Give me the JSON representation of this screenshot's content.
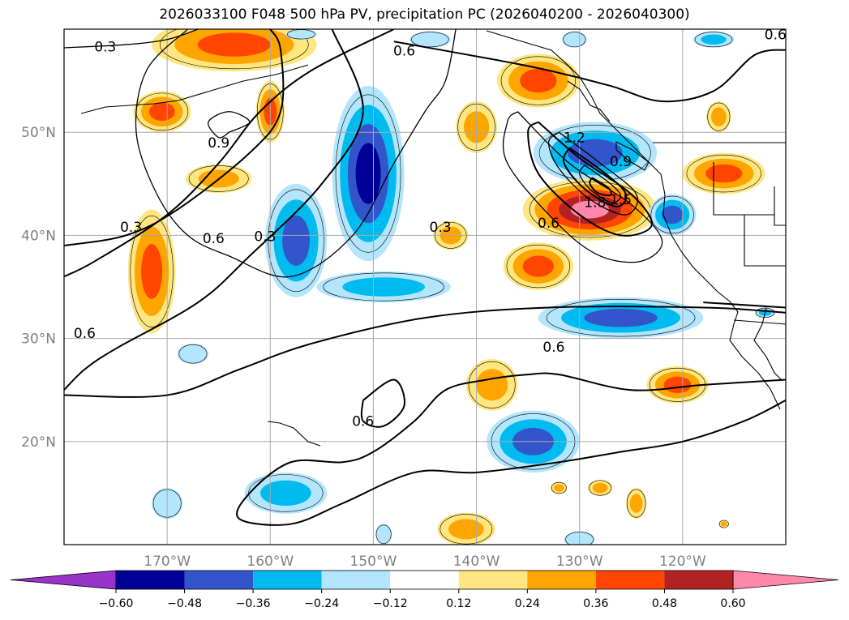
{
  "title": "2026033100 F048 500 hPa PV, precipitation PC (2026040200 - 2026040300)",
  "map": {
    "projection": "cylindrical",
    "lon_range": [
      -180,
      -110
    ],
    "lat_range": [
      10,
      60
    ],
    "grid": true,
    "coastlines": true,
    "lat_ticks": [
      {
        "lat": 50,
        "label": "50°N"
      },
      {
        "lat": 40,
        "label": "40°N"
      },
      {
        "lat": 30,
        "label": "30°N"
      },
      {
        "lat": 20,
        "label": "20°N"
      }
    ],
    "lon_ticks": [
      {
        "lon": -170,
        "label": "170°W"
      },
      {
        "lon": -160,
        "label": "160°W"
      },
      {
        "lon": -150,
        "label": "150°W"
      },
      {
        "lon": -140,
        "label": "140°W"
      },
      {
        "lon": -130,
        "label": "130°W"
      },
      {
        "lon": -120,
        "label": "120°W"
      }
    ],
    "contour_labels": [
      {
        "text": "0.3",
        "lon": -176,
        "lat": 58.3
      },
      {
        "text": "0.6",
        "lon": -147,
        "lat": 57.9
      },
      {
        "text": "0.6",
        "lon": -111,
        "lat": 59.5
      },
      {
        "text": "0.9",
        "lon": -165,
        "lat": 49.0
      },
      {
        "text": "1.2",
        "lon": -130.5,
        "lat": 49.5
      },
      {
        "text": "0.9",
        "lon": -126,
        "lat": 47.2
      },
      {
        "text": "1.8",
        "lon": -128.5,
        "lat": 43.2
      },
      {
        "text": "1.5",
        "lon": -126,
        "lat": 43.5
      },
      {
        "text": "0.6",
        "lon": -133,
        "lat": 41.2
      },
      {
        "text": "0.3",
        "lon": -173.5,
        "lat": 40.8
      },
      {
        "text": "0.6",
        "lon": -165.5,
        "lat": 39.7
      },
      {
        "text": "0.3",
        "lon": -160.5,
        "lat": 39.9
      },
      {
        "text": "0.3",
        "lon": -143.5,
        "lat": 40.8
      },
      {
        "text": "0.6",
        "lon": -178,
        "lat": 30.5
      },
      {
        "text": "0.6",
        "lon": -132.5,
        "lat": 29.2
      },
      {
        "text": "0.6",
        "lon": -151,
        "lat": 22.0
      }
    ]
  },
  "chart_data": {
    "type": "heatmap",
    "title": "2026033100 F048 500 hPa PV, precipitation PC (2026040200 - 2026040300)",
    "xlim": [
      -180,
      -110
    ],
    "ylim": [
      10,
      60
    ],
    "colorbar": {
      "extend": "both",
      "levels": [
        -0.72,
        -0.6,
        -0.48,
        -0.36,
        -0.24,
        -0.12,
        0.12,
        0.24,
        0.36,
        0.48,
        0.6,
        0.72
      ],
      "colors": [
        "#9933cc",
        "#000099",
        "#3355cc",
        "#00bbf0",
        "#b3e5fc",
        "#ffffff",
        "#ffe680",
        "#ffa500",
        "#ff4500",
        "#b22222",
        "#ff88aa"
      ],
      "tick_labels": [
        "−0.60",
        "−0.48",
        "−0.36",
        "−0.24",
        "−0.12",
        "0.12",
        "0.24",
        "0.36",
        "0.48",
        "0.60"
      ],
      "tick_values": [
        -0.6,
        -0.48,
        -0.36,
        -0.24,
        -0.12,
        0.12,
        0.24,
        0.36,
        0.48,
        0.6
      ]
    },
    "precip_pc_fields": [
      {
        "value": 0.45,
        "lon": -163.5,
        "lat": 58.5,
        "rx": 8.0,
        "ry": 2.6
      },
      {
        "value": 0.36,
        "lon": -170.5,
        "lat": 52.0,
        "rx": 2.8,
        "ry": 2.0
      },
      {
        "value": 0.36,
        "lon": -160.0,
        "lat": 52.0,
        "rx": 1.4,
        "ry": 3.0
      },
      {
        "value": 0.3,
        "lon": -165.0,
        "lat": 45.5,
        "rx": 3.2,
        "ry": 1.4
      },
      {
        "value": 0.36,
        "lon": -171.5,
        "lat": 36.5,
        "rx": 2.3,
        "ry": 6.0
      },
      {
        "value": -0.5,
        "lon": -150.5,
        "lat": 46.0,
        "rx": 3.5,
        "ry": 8.5
      },
      {
        "value": -0.42,
        "lon": -157.5,
        "lat": 39.5,
        "rx": 3.0,
        "ry": 5.5
      },
      {
        "value": -0.3,
        "lon": -149.0,
        "lat": 35.0,
        "rx": 6.5,
        "ry": 1.5
      },
      {
        "value": 0.3,
        "lon": -142.5,
        "lat": 40.0,
        "rx": 1.7,
        "ry": 1.4
      },
      {
        "value": 0.3,
        "lon": -140.0,
        "lat": 50.5,
        "rx": 2.0,
        "ry": 2.5
      },
      {
        "value": 0.4,
        "lon": -134.0,
        "lat": 55.0,
        "rx": 4.0,
        "ry": 2.6
      },
      {
        "value": -0.45,
        "lon": -128.5,
        "lat": 48.0,
        "rx": 6.0,
        "ry": 3.0
      },
      {
        "value": 0.62,
        "lon": -129.0,
        "lat": 42.5,
        "rx": 6.5,
        "ry": 3.0
      },
      {
        "value": -0.4,
        "lon": -121.0,
        "lat": 42.0,
        "rx": 2.3,
        "ry": 2.0
      },
      {
        "value": 0.36,
        "lon": -134.0,
        "lat": 37.0,
        "rx": 3.4,
        "ry": 2.3
      },
      {
        "value": -0.36,
        "lon": -126.0,
        "lat": 32.0,
        "rx": 8.0,
        "ry": 2.0
      },
      {
        "value": 0.45,
        "lon": -116.0,
        "lat": 46.0,
        "rx": 4.0,
        "ry": 2.0
      },
      {
        "value": -0.25,
        "lon": -112.0,
        "lat": 32.5,
        "rx": 1.0,
        "ry": 0.5
      },
      {
        "value": 0.36,
        "lon": -120.5,
        "lat": 25.5,
        "rx": 3.0,
        "ry": 1.8
      },
      {
        "value": 0.24,
        "lon": -138.5,
        "lat": 25.5,
        "rx": 2.5,
        "ry": 2.5
      },
      {
        "value": -0.36,
        "lon": -134.5,
        "lat": 20.0,
        "rx": 4.5,
        "ry": 3.0
      },
      {
        "value": -0.24,
        "lon": -158.5,
        "lat": 15.0,
        "rx": 4.0,
        "ry": 2.0
      },
      {
        "value": -0.2,
        "lon": -167.5,
        "lat": 28.5,
        "rx": 1.5,
        "ry": 1.0
      },
      {
        "value": -0.2,
        "lon": -170.0,
        "lat": 14.0,
        "rx": 1.5,
        "ry": 1.5
      },
      {
        "value": 0.24,
        "lon": -141.0,
        "lat": 11.5,
        "rx": 2.8,
        "ry": 1.6
      },
      {
        "value": 0.3,
        "lon": -128.0,
        "lat": 15.5,
        "rx": 1.2,
        "ry": 0.8
      },
      {
        "value": 0.3,
        "lon": -124.5,
        "lat": 14.0,
        "rx": 1.0,
        "ry": 1.5
      },
      {
        "value": -0.2,
        "lon": -130.0,
        "lat": 10.5,
        "rx": 1.5,
        "ry": 0.8
      },
      {
        "value": -0.2,
        "lon": -149.0,
        "lat": 11.0,
        "rx": 0.8,
        "ry": 1.0
      },
      {
        "value": -0.2,
        "lon": -130.5,
        "lat": 59.0,
        "rx": 1.2,
        "ry": 0.8
      },
      {
        "value": -0.2,
        "lon": -144.5,
        "lat": 59.0,
        "rx": 2.0,
        "ry": 0.8
      },
      {
        "value": -0.25,
        "lon": -117.0,
        "lat": 59.0,
        "rx": 2.0,
        "ry": 0.8
      },
      {
        "value": -0.2,
        "lon": -157.0,
        "lat": 59.5,
        "rx": 1.5,
        "ry": 0.5
      },
      {
        "value": 0.24,
        "lon": -116.5,
        "lat": 51.5,
        "rx": 1.2,
        "ry": 1.5
      },
      {
        "value": 0.24,
        "lon": -132.0,
        "lat": 15.5,
        "rx": 0.8,
        "ry": 0.6
      },
      {
        "value": 0.3,
        "lon": -116.0,
        "lat": 12.0,
        "rx": 0.5,
        "ry": 0.4
      }
    ],
    "pv_contours": {
      "levels": [
        0.3,
        0.6,
        0.9,
        1.2,
        1.5,
        1.8
      ],
      "lines": [
        {
          "value": 0.3,
          "points": [
            [
              -180,
              58.2
            ],
            [
              -174,
              58.5
            ],
            [
              -170,
              59
            ],
            [
              -167,
              60
            ]
          ]
        },
        {
          "value": 0.3,
          "points": [
            [
              -168,
              60
            ],
            [
              -172,
              56
            ],
            [
              -173,
              50
            ],
            [
              -171,
              44
            ],
            [
              -168,
              40
            ],
            [
              -164,
              38
            ],
            [
              -158,
              36
            ],
            [
              -152,
              40
            ],
            [
              -148,
              47
            ],
            [
              -145,
              52
            ],
            [
              -143,
              55
            ],
            [
              -142,
              60
            ]
          ]
        },
        {
          "value": 0.6,
          "points": [
            [
              -148,
              60
            ],
            [
              -156,
              56
            ],
            [
              -161,
              52
            ],
            [
              -165,
              47
            ],
            [
              -170,
              42
            ],
            [
              -177,
              37.5
            ],
            [
              -180,
              36
            ]
          ]
        },
        {
          "value": 0.6,
          "points": [
            [
              -154,
              60
            ],
            [
              -151,
              52
            ],
            [
              -155,
              45
            ],
            [
              -162,
              38
            ],
            [
              -167,
              33.5
            ],
            [
              -175,
              29
            ],
            [
              -178,
              27
            ],
            [
              -180,
              25
            ]
          ]
        },
        {
          "value": 0.6,
          "points": [
            [
              -148,
              58.8
            ],
            [
              -138,
              57
            ],
            [
              -133,
              56
            ],
            [
              -127,
              54.5
            ],
            [
              -122,
              53
            ],
            [
              -117,
              54
            ],
            [
              -113,
              57.5
            ],
            [
              -110,
              58
            ]
          ]
        },
        {
          "value": 0.6,
          "points": [
            [
              -180,
              39
            ],
            [
              -174,
              40
            ],
            [
              -169,
              42.5
            ],
            [
              -162,
              48
            ],
            [
              -159,
              52
            ],
            [
              -159,
              58
            ],
            [
              -160,
              60
            ]
          ]
        },
        {
          "value": 0.9,
          "points": [
            [
              -164,
              50
            ],
            [
              -162,
              51
            ],
            [
              -164,
              52
            ],
            [
              -166,
              51
            ],
            [
              -165,
              49.5
            ],
            [
              -164,
              50
            ]
          ]
        },
        {
          "value": 0.3,
          "points": [
            [
              -136,
              52
            ],
            [
              -131,
              47
            ],
            [
              -125,
              43
            ],
            [
              -122,
              39.5
            ],
            [
              -124,
              37.5
            ],
            [
              -128,
              38
            ],
            [
              -132,
              41
            ],
            [
              -137,
              47
            ],
            [
              -137,
              51
            ],
            [
              -136,
              52
            ]
          ]
        },
        {
          "value": 0.6,
          "points": [
            [
              -134,
              51
            ],
            [
              -130,
              47.5
            ],
            [
              -125,
              44
            ],
            [
              -123,
              41
            ],
            [
              -126,
              40
            ],
            [
              -130,
              42
            ],
            [
              -134,
              46
            ],
            [
              -135,
              50
            ],
            [
              -134,
              51
            ]
          ]
        },
        {
          "value": 0.9,
          "points": [
            [
              -132,
              50
            ],
            [
              -128,
              47
            ],
            [
              -124.5,
              44
            ],
            [
              -125.5,
              42
            ],
            [
              -129,
              43.5
            ],
            [
              -132,
              46.5
            ],
            [
              -133,
              49
            ],
            [
              -132,
              50
            ]
          ]
        },
        {
          "value": 1.2,
          "points": [
            [
              -131,
              48.5
            ],
            [
              -127.5,
              46
            ],
            [
              -125.5,
              44
            ],
            [
              -126.5,
              42.8
            ],
            [
              -129.5,
              44.5
            ],
            [
              -131.5,
              47
            ],
            [
              -131,
              48.5
            ]
          ]
        },
        {
          "value": 1.5,
          "points": [
            [
              -129.5,
              46.8
            ],
            [
              -127,
              45
            ],
            [
              -126,
              43.8
            ],
            [
              -127,
              43.2
            ],
            [
              -129,
              44.5
            ],
            [
              -130,
              46
            ],
            [
              -129.5,
              46.8
            ]
          ]
        },
        {
          "value": 1.8,
          "points": [
            [
              -128.8,
              45.6
            ],
            [
              -127.2,
              44.6
            ],
            [
              -127,
              43.9
            ],
            [
              -128.2,
              44.1
            ],
            [
              -129,
              45
            ],
            [
              -128.8,
              45.6
            ]
          ]
        },
        {
          "value": 0.6,
          "points": [
            [
              -180,
              24.5
            ],
            [
              -170,
              24.5
            ],
            [
              -163,
              27
            ],
            [
              -156,
              29.5
            ],
            [
              -145,
              32
            ],
            [
              -133,
              33
            ],
            [
              -118,
              33
            ],
            [
              -110,
              32.5
            ]
          ]
        },
        {
          "value": 0.6,
          "points": [
            [
              -110,
              26
            ],
            [
              -118,
              25.5
            ],
            [
              -125,
              25
            ],
            [
              -132,
              26.5
            ],
            [
              -135,
              26.5
            ],
            [
              -139,
              26
            ],
            [
              -143,
              25
            ],
            [
              -146,
              22
            ],
            [
              -150,
              19
            ],
            [
              -153,
              18
            ],
            [
              -158,
              18
            ],
            [
              -162,
              15
            ],
            [
              -163,
              12.5
            ],
            [
              -158,
              12
            ],
            [
              -153,
              14
            ],
            [
              -146,
              17
            ],
            [
              -140,
              17
            ],
            [
              -132,
              18
            ],
            [
              -126,
              19
            ],
            [
              -120,
              20
            ],
            [
              -114,
              22
            ],
            [
              -110,
              24
            ]
          ]
        },
        {
          "value": 0.6,
          "points": [
            [
              -151,
              24
            ],
            [
              -148,
              26
            ],
            [
              -147,
              23.5
            ],
            [
              -149,
              21.5
            ],
            [
              -151,
              22
            ],
            [
              -151,
              24
            ]
          ]
        },
        {
          "value": 0.6,
          "points": [
            [
              -118,
              33.5
            ],
            [
              -110,
              33
            ]
          ]
        }
      ]
    }
  }
}
